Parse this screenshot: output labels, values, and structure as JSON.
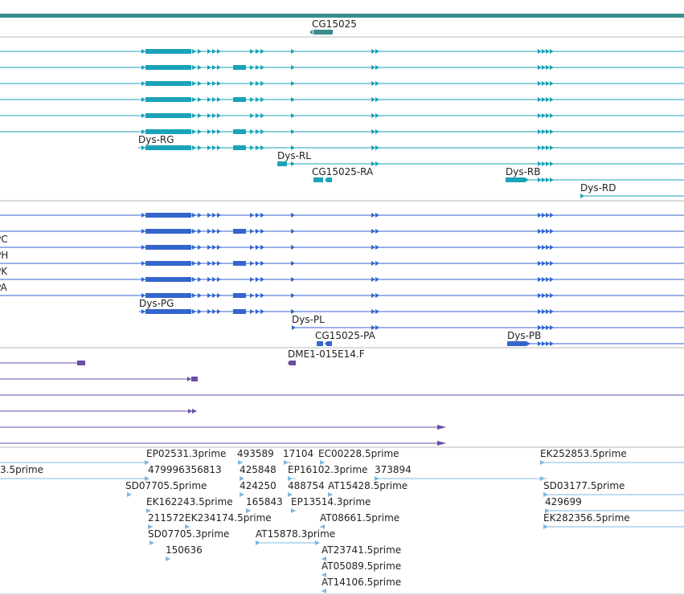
{
  "colors": {
    "gene": "#3a8e8c",
    "transcript": "#1aa3b8",
    "cds": "#3366cc",
    "est": "#6b4fa5",
    "reads": "#7db8e0",
    "separator": "#bbbbbb"
  },
  "tracks": {
    "gene_label": "CG15025",
    "transcript_labels": [
      "Dys-RG",
      "Dys-RL",
      "CG15025-RA",
      "Dys-RB",
      "Dys-RD"
    ],
    "cds_left_labels": [
      "PC",
      "PH",
      "PK",
      "PA"
    ],
    "cds_labels": [
      "Dys-PG",
      "Dys-PL",
      "CG15025-PA",
      "Dys-PB"
    ],
    "est_label": "DME1-015E14.F",
    "read_labels": [
      "3.5prime",
      "EP02531.3prime",
      "479996356813",
      "493589",
      "425848",
      "17104",
      "EC00228.5prime",
      "EP16102.3prime",
      "373894",
      "EK252853.5prime",
      "SD07705.5prime",
      "424250",
      "488754",
      "AT15428.5prime",
      "SD03177.5prime",
      "EK162243.5prime",
      "165843",
      "EP13514.3prime",
      "429699",
      "211572",
      "EK234174.5prime",
      "AT08661.5prime",
      "EK282356.5prime",
      "SD07705.3prime",
      "AT15878.3prime",
      "150636",
      "AT23741.5prime",
      "AT05089.5prime",
      "AT14106.5prime"
    ]
  }
}
